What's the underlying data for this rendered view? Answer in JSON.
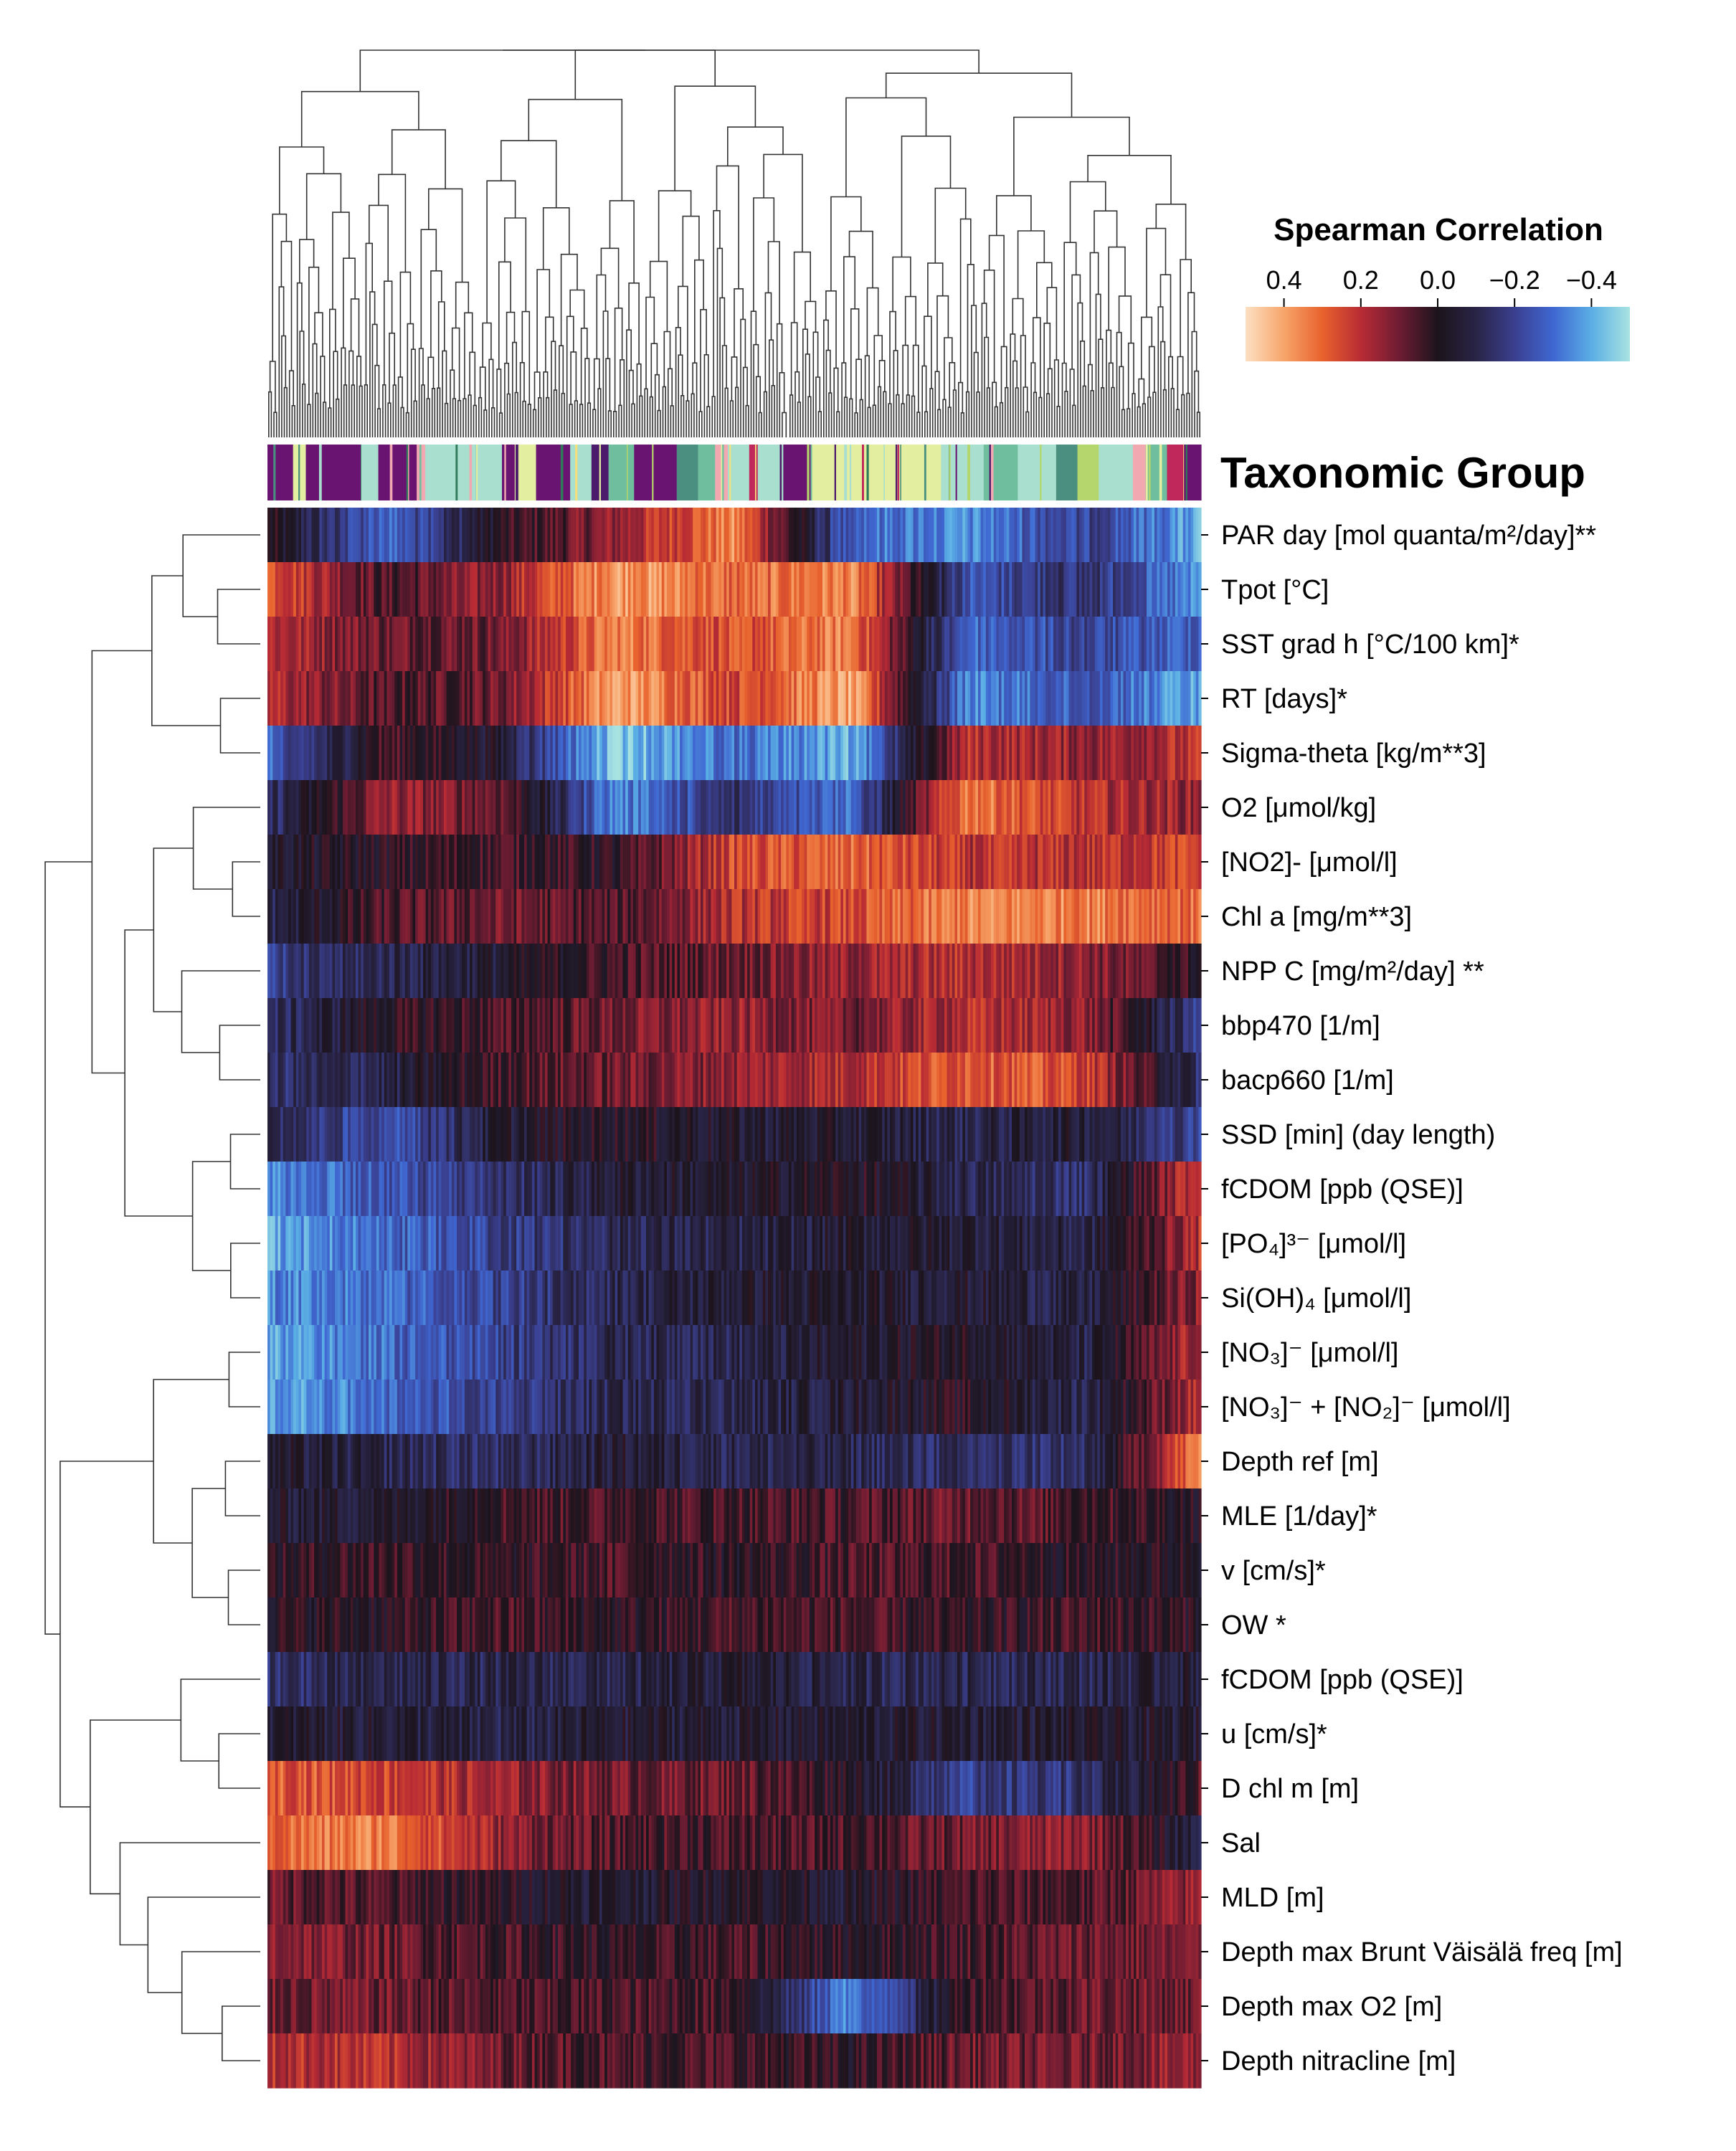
{
  "chart_data": {
    "type": "heatmap",
    "title": "",
    "colorbar": {
      "label": "Spearman Correlation",
      "ticks": [
        "0.4",
        "0.2",
        "0.0",
        "−0.2",
        "−0.4"
      ],
      "range": [
        0.5,
        -0.5
      ],
      "colors": [
        "#fde0c2",
        "#f7a56a",
        "#e8622d",
        "#b82b34",
        "#6e1c33",
        "#1c141c",
        "#292446",
        "#3a3f8f",
        "#3f67d1",
        "#5aaee5",
        "#a8e3e1"
      ]
    },
    "column_annotation": {
      "label": "Taxonomic Group",
      "palette": [
        "#6a1472",
        "#4c1b6c",
        "#e3eea0",
        "#a9dfcf",
        "#6fbe9d",
        "#4a8f7f",
        "#f2a8b0",
        "#c0285c",
        "#f6e07a",
        "#2f7a59",
        "#b5d66d"
      ],
      "segments": [
        {
          "group": 0,
          "count": 12
        },
        {
          "group": 2,
          "count": 6
        },
        {
          "group": 0,
          "count": 26
        },
        {
          "group": 3,
          "count": 8
        },
        {
          "group": 0,
          "count": 18
        },
        {
          "group": 6,
          "count": 4
        },
        {
          "group": 3,
          "count": 36
        },
        {
          "group": 0,
          "count": 6
        },
        {
          "group": 2,
          "count": 10
        },
        {
          "group": 0,
          "count": 16
        },
        {
          "group": 3,
          "count": 10
        },
        {
          "group": 1,
          "count": 8
        },
        {
          "group": 4,
          "count": 12
        },
        {
          "group": 0,
          "count": 20
        },
        {
          "group": 5,
          "count": 10
        },
        {
          "group": 4,
          "count": 8
        },
        {
          "group": 6,
          "count": 6
        },
        {
          "group": 3,
          "count": 10
        },
        {
          "group": 7,
          "count": 4
        },
        {
          "group": 3,
          "count": 12
        },
        {
          "group": 0,
          "count": 14
        },
        {
          "group": 2,
          "count": 60
        },
        {
          "group": 3,
          "count": 20
        },
        {
          "group": 4,
          "count": 16
        },
        {
          "group": 3,
          "count": 18
        },
        {
          "group": 5,
          "count": 10
        },
        {
          "group": 10,
          "count": 10
        },
        {
          "group": 3,
          "count": 16
        },
        {
          "group": 6,
          "count": 6
        },
        {
          "group": 4,
          "count": 10
        },
        {
          "group": 7,
          "count": 8
        },
        {
          "group": 0,
          "count": 8
        }
      ]
    },
    "rows": [
      {
        "label": "PAR day [mol quanta/m²/day]**",
        "values": [
          0.0,
          -0.3,
          0.0,
          0.15,
          0.35,
          -0.3,
          -0.35,
          -0.2,
          -0.4
        ]
      },
      {
        "label": "Tpot [°C]",
        "values": [
          0.3,
          0.05,
          0.15,
          0.4,
          0.3,
          0.35,
          -0.25,
          -0.15,
          -0.35
        ]
      },
      {
        "label": "SST grad h [°C/100 km]*",
        "values": [
          0.2,
          0.1,
          0.1,
          0.35,
          0.25,
          0.35,
          -0.3,
          -0.2,
          -0.3
        ]
      },
      {
        "label": "RT [days]*",
        "values": [
          0.2,
          0.05,
          0.1,
          0.4,
          0.25,
          0.4,
          -0.35,
          -0.25,
          -0.4
        ]
      },
      {
        "label": "Sigma-theta [kg/m**3]",
        "values": [
          -0.3,
          0.05,
          -0.05,
          -0.45,
          -0.3,
          -0.4,
          0.2,
          0.15,
          0.2
        ]
      },
      {
        "label": "O2 [μmol/kg]",
        "values": [
          -0.15,
          0.15,
          0.1,
          -0.35,
          -0.15,
          -0.3,
          0.35,
          0.2,
          0.15
        ]
      },
      {
        "label": "[NO2]- [μmol/l]",
        "values": [
          -0.05,
          0.0,
          0.05,
          0.0,
          0.25,
          0.3,
          0.2,
          0.2,
          0.25
        ]
      },
      {
        "label": "Chl a [mg/m**3]",
        "values": [
          -0.1,
          0.05,
          0.1,
          0.05,
          0.2,
          0.25,
          0.35,
          0.35,
          0.3
        ]
      },
      {
        "label": "NPP C [mg/m²/day] **",
        "values": [
          -0.2,
          -0.1,
          -0.05,
          0.05,
          0.1,
          0.15,
          0.2,
          0.15,
          0.0
        ]
      },
      {
        "label": "bbp470 [1/m]",
        "values": [
          -0.15,
          0.0,
          0.05,
          0.1,
          0.15,
          0.1,
          0.2,
          0.15,
          -0.2
        ]
      },
      {
        "label": "bacp660 [1/m]",
        "values": [
          -0.15,
          -0.1,
          0.05,
          0.1,
          0.15,
          0.2,
          0.3,
          0.25,
          -0.15
        ]
      },
      {
        "label": "SSD [min] (day length)",
        "values": [
          -0.1,
          -0.25,
          -0.05,
          0.0,
          -0.05,
          -0.05,
          -0.1,
          -0.05,
          -0.2
        ]
      },
      {
        "label": "fCDOM [ppb (QSE)]",
        "values": [
          -0.35,
          -0.25,
          -0.15,
          -0.05,
          -0.05,
          0.0,
          -0.1,
          -0.15,
          0.25
        ]
      },
      {
        "label": "[PO₄]³⁻ [μmol/l]",
        "values": [
          -0.4,
          -0.3,
          -0.2,
          -0.1,
          -0.1,
          -0.05,
          -0.05,
          -0.1,
          0.2
        ]
      },
      {
        "label": "Si(OH)₄ [μmol/l]",
        "values": [
          -0.35,
          -0.3,
          -0.2,
          -0.1,
          -0.05,
          -0.05,
          -0.05,
          -0.1,
          0.15
        ]
      },
      {
        "label": "[NO₃]⁻ [μmol/l]",
        "values": [
          -0.4,
          -0.3,
          -0.2,
          -0.1,
          -0.1,
          -0.05,
          0.0,
          -0.1,
          0.2
        ]
      },
      {
        "label": "[NO₃]⁻ + [NO₂]⁻ [μmol/l]",
        "values": [
          -0.4,
          -0.3,
          -0.2,
          -0.1,
          -0.1,
          -0.05,
          0.0,
          -0.1,
          0.2
        ]
      },
      {
        "label": "Depth ref [m]",
        "values": [
          -0.05,
          -0.1,
          -0.15,
          -0.05,
          -0.1,
          -0.1,
          -0.15,
          -0.15,
          0.35
        ]
      },
      {
        "label": "MLE [1/day]*",
        "values": [
          -0.05,
          -0.05,
          0.05,
          0.05,
          0.05,
          0.05,
          0.1,
          0.05,
          0.0
        ]
      },
      {
        "label": "v [cm/s]*",
        "values": [
          0.0,
          0.05,
          0.0,
          0.05,
          0.0,
          0.05,
          0.05,
          0.0,
          0.0
        ]
      },
      {
        "label": "OW *",
        "values": [
          0.0,
          0.0,
          0.05,
          0.0,
          0.05,
          0.05,
          0.0,
          0.05,
          0.0
        ]
      },
      {
        "label": "fCDOM [ppb (QSE)]",
        "values": [
          -0.15,
          -0.1,
          -0.1,
          -0.1,
          -0.05,
          -0.1,
          -0.1,
          -0.1,
          -0.05
        ]
      },
      {
        "label": "u [cm/s]*",
        "values": [
          -0.05,
          -0.05,
          -0.1,
          -0.05,
          -0.05,
          -0.05,
          -0.05,
          -0.05,
          -0.05
        ]
      },
      {
        "label": "D chl m [m]",
        "values": [
          0.3,
          0.25,
          0.15,
          0.1,
          0.1,
          0.0,
          -0.2,
          -0.15,
          0.05
        ]
      },
      {
        "label": "Sal",
        "values": [
          0.3,
          0.35,
          0.15,
          0.05,
          0.05,
          0.05,
          0.1,
          0.15,
          -0.1
        ]
      },
      {
        "label": "MLD [m]",
        "values": [
          0.1,
          0.05,
          0.0,
          -0.05,
          0.0,
          -0.05,
          0.05,
          0.05,
          0.15
        ]
      },
      {
        "label": "Depth max Brunt Väisälä freq [m]",
        "values": [
          0.15,
          0.1,
          0.05,
          0.0,
          0.05,
          0.0,
          0.05,
          0.1,
          0.1
        ]
      },
      {
        "label": "Depth max O2 [m]",
        "values": [
          0.1,
          0.1,
          0.05,
          0.05,
          0.05,
          -0.35,
          0.05,
          0.1,
          0.1
        ]
      },
      {
        "label": "Depth nitracline [m]",
        "values": [
          0.2,
          0.2,
          0.1,
          0.05,
          0.05,
          0.0,
          0.1,
          0.1,
          0.15
        ]
      }
    ]
  }
}
